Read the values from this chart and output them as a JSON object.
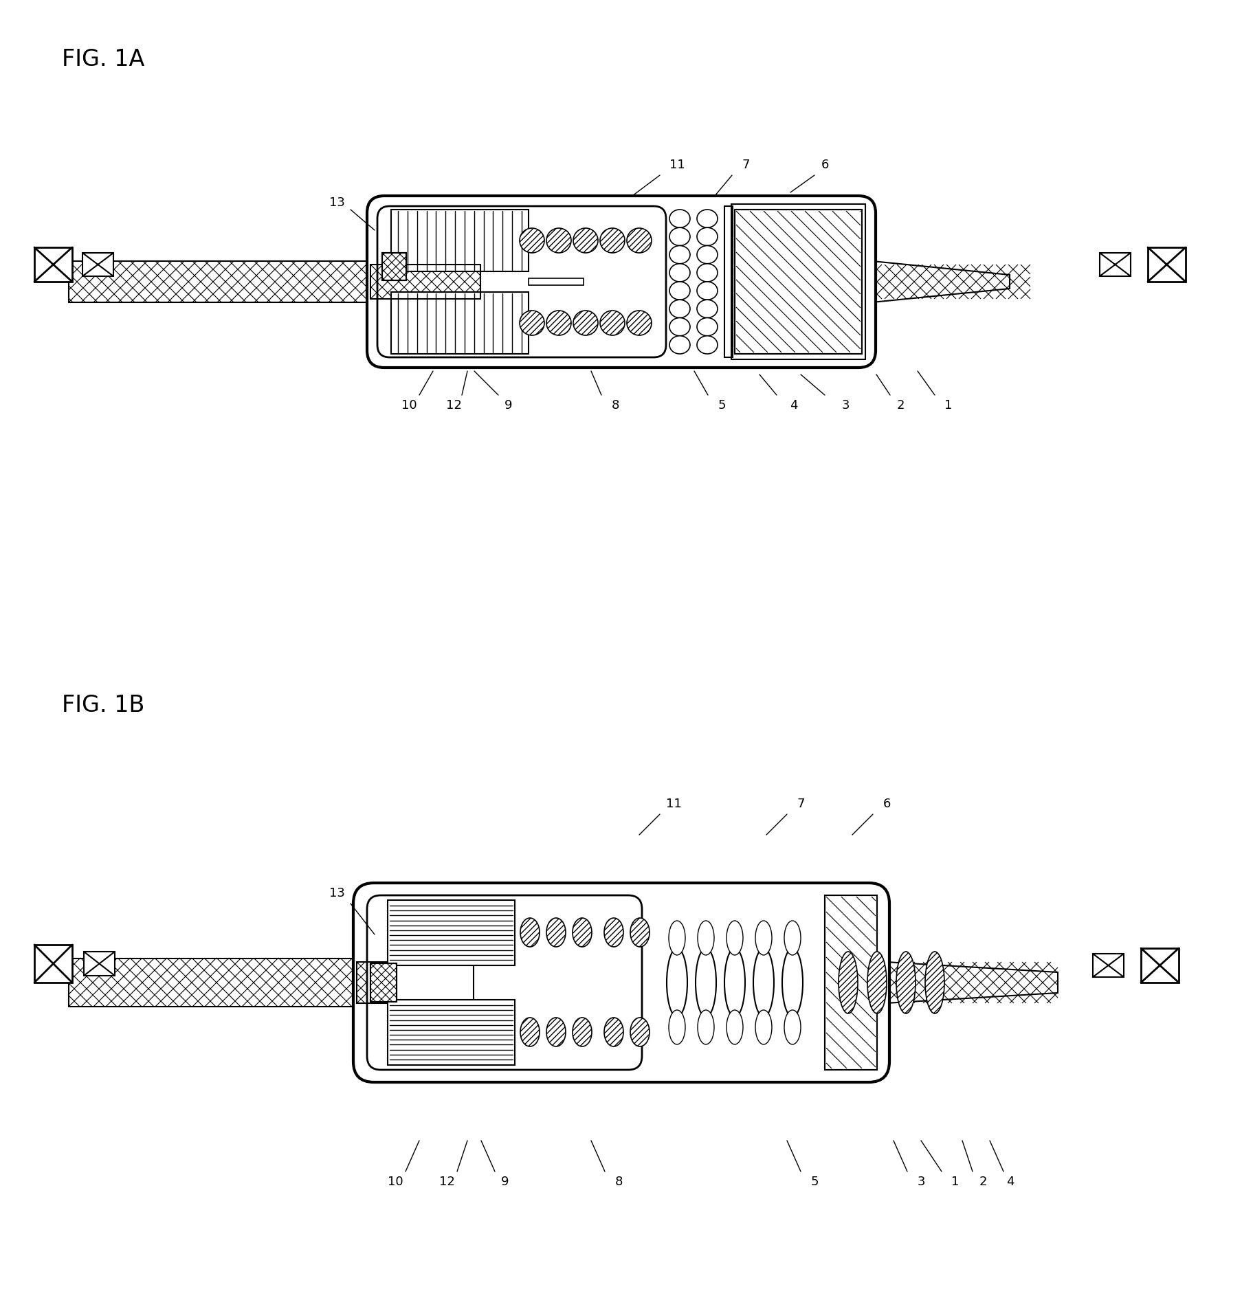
{
  "fig_width": 18.08,
  "fig_height": 18.92,
  "bg_color": "#ffffff",
  "fig1a_label": "FIG. 1A",
  "fig1b_label": "FIG. 1B",
  "label_fontsize": 24,
  "number_fontsize": 13
}
